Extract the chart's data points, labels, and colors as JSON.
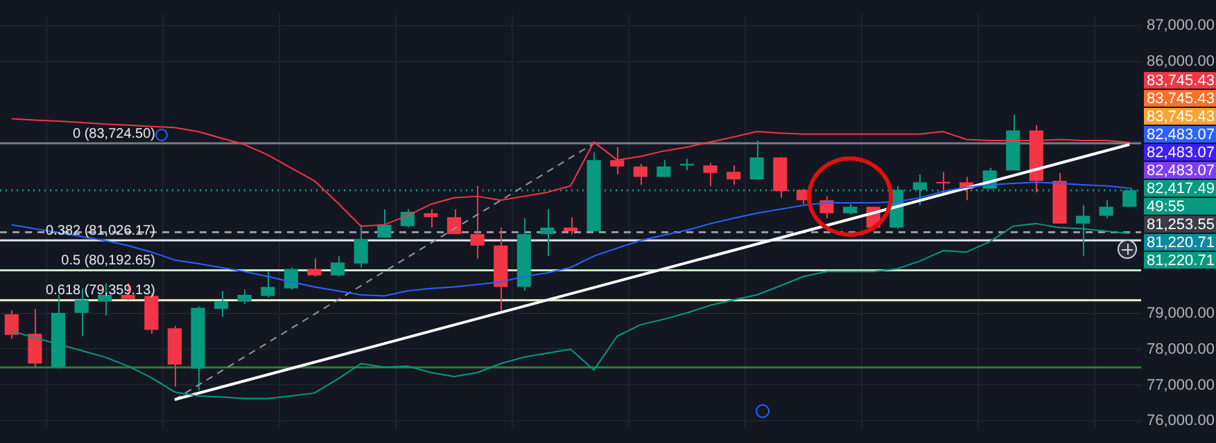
{
  "chart_data": {
    "type": "candlestick",
    "categories": [
      null,
      null,
      null,
      null,
      null,
      null,
      null,
      null,
      null,
      null,
      null,
      null,
      null,
      null,
      null,
      null,
      null,
      null,
      null,
      null,
      null,
      null,
      null,
      null,
      null,
      null,
      null,
      null,
      null,
      null,
      null,
      null,
      null,
      null,
      null,
      null,
      null,
      null,
      null,
      null,
      null,
      null,
      null,
      null,
      null,
      null,
      null,
      null,
      null
    ],
    "ohlc": [
      [
        78970,
        79080,
        78290,
        78400
      ],
      [
        78430,
        79120,
        77500,
        77600
      ],
      [
        77500,
        79510,
        77460,
        79010
      ],
      [
        79010,
        79690,
        78360,
        79370
      ],
      [
        79330,
        79840,
        78940,
        79510
      ],
      [
        79510,
        79840,
        79370,
        79400
      ],
      [
        79480,
        79550,
        78430,
        78540
      ],
      [
        78580,
        78650,
        76960,
        77570
      ],
      [
        77460,
        79190,
        76850,
        79150
      ],
      [
        79120,
        79620,
        78900,
        79330
      ],
      [
        79330,
        79660,
        79260,
        79510
      ],
      [
        79480,
        80160,
        79440,
        79730
      ],
      [
        79690,
        80270,
        79660,
        80230
      ],
      [
        80230,
        80520,
        80020,
        80050
      ],
      [
        80050,
        80590,
        80020,
        80410
      ],
      [
        80380,
        81460,
        80270,
        81060
      ],
      [
        81100,
        81890,
        81100,
        81460
      ],
      [
        81420,
        81890,
        81380,
        81820
      ],
      [
        81780,
        81890,
        81380,
        81670
      ],
      [
        81670,
        81890,
        81200,
        81200
      ],
      [
        81200,
        82540,
        80520,
        80880
      ],
      [
        80880,
        81380,
        79080,
        79730
      ],
      [
        79730,
        81640,
        79620,
        81200
      ],
      [
        81200,
        81890,
        80590,
        81380
      ],
      [
        81380,
        81670,
        81200,
        81280
      ],
      [
        81280,
        83470,
        81280,
        83260
      ],
      [
        83260,
        83620,
        82860,
        83080
      ],
      [
        83080,
        83150,
        82570,
        82790
      ],
      [
        82790,
        83260,
        82790,
        83080
      ],
      [
        83110,
        83290,
        82970,
        83150
      ],
      [
        83110,
        83180,
        82540,
        82900
      ],
      [
        82930,
        83110,
        82570,
        82720
      ],
      [
        82720,
        83800,
        82720,
        83330
      ],
      [
        83330,
        83330,
        82210,
        82390
      ],
      [
        82430,
        82460,
        82030,
        82140
      ],
      [
        82140,
        82250,
        81640,
        81780
      ],
      [
        81780,
        82030,
        81740,
        81960
      ],
      [
        81960,
        81960,
        81310,
        81380
      ],
      [
        81380,
        82540,
        81350,
        82430
      ],
      [
        82430,
        82860,
        82000,
        82640
      ],
      [
        82640,
        82930,
        82320,
        82610
      ],
      [
        82640,
        82790,
        82140,
        82460
      ],
      [
        82460,
        83040,
        82460,
        82970
      ],
      [
        82970,
        84520,
        82970,
        84080
      ],
      [
        84080,
        84230,
        82360,
        82680
      ],
      [
        82680,
        82900,
        81490,
        81490
      ],
      [
        81490,
        82000,
        80590,
        81710
      ],
      [
        81710,
        82140,
        81640,
        81960
      ],
      [
        81960,
        82500,
        81960,
        82417.49
      ]
    ],
    "colors": [
      "#f23645",
      "#f23645",
      "#089981",
      "#089981",
      "#089981",
      "#f23645",
      "#f23645",
      "#f23645",
      "#089981",
      "#089981",
      "#089981",
      "#089981",
      "#089981",
      "#f23645",
      "#089981",
      "#089981",
      "#089981",
      "#089981",
      "#f23645",
      "#f23645",
      "#f23645",
      "#f23645",
      "#089981",
      "#089981",
      "#f23645",
      "#089981",
      "#f23645",
      "#f23645",
      "#089981",
      "#089981",
      "#f23645",
      "#f23645",
      "#089981",
      "#f23645",
      "#f23645",
      "#f23645",
      "#089981",
      "#f23645",
      "#089981",
      "#089981",
      "#f23645",
      "#f23645",
      "#089981",
      "#089981",
      "#f23645",
      "#f23645",
      "#089981",
      "#089981",
      "#089981"
    ],
    "series": [
      {
        "type": "line",
        "color": "#f23645",
        "values": [
          84410,
          84370,
          84340,
          84300,
          84260,
          84230,
          84190,
          84160,
          84050,
          83870,
          83690,
          83400,
          83040,
          82680,
          82070,
          81420,
          81460,
          81710,
          82030,
          82210,
          82250,
          82140,
          82250,
          82360,
          82540,
          83760,
          83260,
          83360,
          83510,
          83620,
          83760,
          83900,
          84050,
          84010,
          83980,
          83980,
          83980,
          83980,
          83980,
          83980,
          84050,
          83830,
          83800,
          83800,
          83800,
          83830,
          83800,
          83800,
          83750
        ]
      },
      {
        "type": "line",
        "color": "#2962ff",
        "values": [
          81460,
          81350,
          81240,
          81130,
          81020,
          80880,
          80700,
          80480,
          80380,
          80270,
          80160,
          80020,
          79870,
          79730,
          79620,
          79510,
          79480,
          79620,
          79690,
          79730,
          79800,
          79870,
          80020,
          80120,
          80270,
          80590,
          80810,
          81020,
          81170,
          81310,
          81490,
          81640,
          81780,
          81890,
          82000,
          82070,
          82070,
          82070,
          82100,
          82210,
          82390,
          82500,
          82570,
          82610,
          82640,
          82610,
          82570,
          82540,
          82480
        ]
      },
      {
        "type": "line",
        "color": "#089981",
        "values": [
          78500,
          78320,
          78140,
          77960,
          77780,
          77530,
          77210,
          76810,
          76700,
          76670,
          76630,
          76630,
          76700,
          76780,
          77170,
          77600,
          77500,
          77530,
          77350,
          77240,
          77350,
          77600,
          77780,
          77890,
          78000,
          77420,
          78360,
          78680,
          78830,
          79010,
          79220,
          79370,
          79510,
          79760,
          80020,
          80160,
          80160,
          80160,
          80230,
          80450,
          80740,
          80700,
          80990,
          81420,
          81490,
          81380,
          81350,
          81280,
          81220
        ]
      },
      {
        "type": "line",
        "color": "#ffffff",
        "values": [
          null,
          null,
          null,
          null,
          null,
          null,
          null,
          76600,
          null,
          null,
          null,
          null,
          null,
          null,
          null,
          null,
          null,
          null,
          null,
          null,
          null,
          null,
          null,
          null,
          null,
          null,
          null,
          null,
          null,
          null,
          null,
          null,
          null,
          null,
          null,
          null,
          null,
          null,
          null,
          null,
          null,
          null,
          null,
          null,
          null,
          null,
          null,
          null,
          83690
        ]
      },
      {
        "type": "line",
        "color": "#9598a1",
        "line_style": "dashed",
        "values": [
          null,
          null,
          null,
          null,
          null,
          null,
          null,
          76600,
          null,
          null,
          null,
          null,
          null,
          null,
          null,
          null,
          null,
          null,
          null,
          null,
          null,
          null,
          null,
          null,
          null,
          83720,
          null,
          null,
          null,
          null,
          null,
          null,
          null,
          null,
          null,
          null,
          null,
          null,
          null,
          null,
          null,
          null,
          null,
          null,
          null,
          null,
          null,
          null,
          null
        ]
      }
    ],
    "ylim": [
      75800,
      87300
    ],
    "yticks": [
      {
        "value": 76000,
        "label": "76,000.00"
      },
      {
        "value": 77000,
        "label": "77,000.00"
      },
      {
        "value": 78000,
        "label": "78,000.00"
      },
      {
        "value": 79000,
        "label": "79,000.00"
      },
      {
        "value": 86000,
        "label": "86,000.00"
      },
      {
        "value": 87000,
        "label": "87,000.00"
      }
    ],
    "ref_lines": [
      {
        "axis": "y",
        "value": 83724.5,
        "label": "0 (83,724.50)",
        "color": "#787b86"
      },
      {
        "axis": "y",
        "value": 81026.17,
        "label": "0.382 (81,026.17)",
        "color": "#e0e3eb"
      },
      {
        "axis": "y",
        "value": 80192.65,
        "label": "0.5 (80,192.65)",
        "color": "#c8e6c9"
      },
      {
        "axis": "y",
        "value": 79359.13,
        "label": "0.618 (79,359.13)",
        "color": "#f0f4c3"
      },
      {
        "axis": "y",
        "value": 77496,
        "color": "#2e7d32"
      },
      {
        "axis": "y",
        "value": 81253.55,
        "color": "#9598a1",
        "line_style": "dashed"
      },
      {
        "axis": "y",
        "value": 82417.49,
        "color": "#089981",
        "line_style": "dotted"
      }
    ],
    "annotations": [
      "83,745.43",
      "83,745.43",
      "83,745.43",
      "82,483.07",
      "82,483.07",
      "82,483.07",
      "82,417.49",
      "49:55",
      "81,253.55",
      "81,220.71",
      "81,220.71"
    ],
    "grid": true,
    "marker": "none",
    "tick_labels": "y"
  }
}
